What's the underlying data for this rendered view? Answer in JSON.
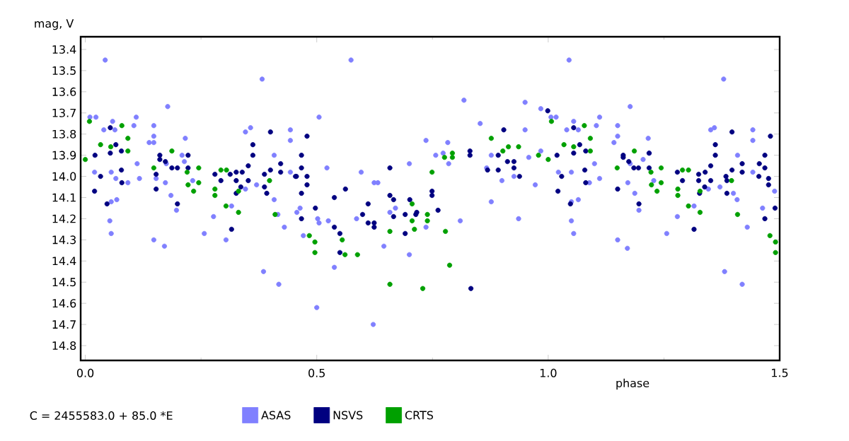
{
  "chart_data": {
    "type": "scatter",
    "ylabel": "mag, V",
    "xlabel": "phase",
    "annotations": [
      "C = 2455583.0 + 85.0 *E"
    ],
    "xlim": [
      -0.01,
      1.5
    ],
    "ylim": [
      14.87,
      13.34
    ],
    "xticks": [
      {
        "value": 0,
        "label": "0.0"
      },
      {
        "value": 0.5,
        "label": "0.5"
      },
      {
        "value": 1,
        "label": "1.0"
      },
      {
        "value": 1.5,
        "label": "1.5"
      }
    ],
    "yticks": [
      {
        "value": 13.4,
        "label": "13.4"
      },
      {
        "value": 13.5,
        "label": "13.5"
      },
      {
        "value": 13.6,
        "label": "13.6"
      },
      {
        "value": 13.7,
        "label": "13.7"
      },
      {
        "value": 13.8,
        "label": "13.8"
      },
      {
        "value": 13.9,
        "label": "13.9"
      },
      {
        "value": 14.0,
        "label": "14.0"
      },
      {
        "value": 14.1,
        "label": "14.1"
      },
      {
        "value": 14.2,
        "label": "14.2"
      },
      {
        "value": 14.3,
        "label": "14.3"
      },
      {
        "value": 14.4,
        "label": "14.4"
      },
      {
        "value": 14.5,
        "label": "14.5"
      },
      {
        "value": 14.6,
        "label": "14.6"
      },
      {
        "value": 14.7,
        "label": "14.7"
      },
      {
        "value": 14.8,
        "label": "14.8"
      }
    ],
    "legend": "bottom",
    "marker": "circle",
    "grid": false,
    "series": [
      {
        "name": "ASAS",
        "color": "#8080ff",
        "x": [
          0.043,
          0.01,
          0.023,
          0.04,
          0.059,
          0.064,
          0.11,
          0.105,
          0.138,
          0.148,
          0.112,
          0.117,
          0.02,
          0.056,
          0.066,
          0.092,
          0.056,
          0.068,
          0.053,
          0.056,
          0.148,
          0.148,
          0.178,
          0.153,
          0.175,
          0.173,
          0.185,
          0.197,
          0.209,
          0.216,
          0.214,
          0.232,
          0.257,
          0.148,
          0.171,
          0.277,
          0.304,
          0.316,
          0.346,
          0.357,
          0.346,
          0.37,
          0.382,
          0.385,
          0.418,
          0.408,
          0.408,
          0.416,
          0.43,
          0.443,
          0.443,
          0.443,
          0.457,
          0.574,
          0.505,
          0.464,
          0.471,
          0.502,
          0.505,
          0.522,
          0.525,
          0.538,
          0.5,
          0.586,
          0.596,
          0.624,
          0.632,
          0.658,
          0.67,
          0.645,
          0.7,
          0.7,
          0.622,
          0.736,
          0.736,
          0.757,
          0.783,
          0.773,
          0.785,
          0.818,
          0.81,
          0.867,
          0.877,
          0.853,
          0.877,
          0.9,
          0.926,
          0.936,
          0.95,
          0.95,
          0.984,
          1.006,
          1.017,
          0.972,
          1.022,
          0.958,
          0.984,
          1.045,
          1.055,
          1.04,
          1.065,
          1.111,
          1.104,
          1.142,
          1.177,
          1.05,
          1.089,
          1.111,
          1.1,
          1.05,
          1.065,
          1.05,
          1.055,
          1.15,
          1.15,
          1.172,
          1.177,
          1.187,
          1.196,
          1.205,
          1.216,
          1.218,
          1.228,
          1.256,
          1.15,
          1.171,
          1.279,
          1.315,
          1.351,
          1.359,
          1.346,
          1.371,
          1.379,
          1.381,
          1.419,
          1.4,
          1.409,
          1.408,
          1.43,
          1.442,
          1.442,
          1.442,
          1.463,
          1.489
        ],
        "values": [
          13.45,
          13.72,
          13.72,
          13.78,
          13.74,
          13.78,
          13.72,
          13.76,
          13.84,
          13.84,
          13.94,
          14.01,
          13.98,
          13.98,
          14.01,
          14.03,
          14.12,
          14.11,
          14.21,
          14.27,
          13.76,
          13.81,
          13.67,
          14.01,
          13.94,
          14.03,
          14.09,
          14.16,
          13.9,
          13.82,
          13.93,
          14.02,
          14.27,
          14.3,
          14.33,
          14.19,
          14.3,
          14.14,
          13.79,
          13.77,
          14.06,
          14.04,
          13.54,
          14.45,
          14.51,
          14.11,
          13.9,
          14.18,
          14.24,
          13.78,
          13.83,
          13.98,
          14.17,
          13.45,
          13.72,
          14.15,
          14.28,
          14.2,
          14.22,
          13.96,
          14.21,
          14.43,
          14.62,
          14.2,
          13.98,
          14.03,
          14.03,
          14.17,
          14.15,
          14.33,
          13.94,
          14.37,
          14.7,
          13.83,
          14.24,
          13.9,
          13.84,
          13.89,
          13.94,
          13.64,
          14.21,
          13.96,
          14.12,
          13.75,
          13.9,
          14.02,
          14.0,
          14.2,
          13.65,
          13.78,
          13.68,
          13.72,
          13.72,
          14.04,
          13.98,
          13.91,
          13.88,
          13.45,
          13.74,
          13.78,
          13.78,
          13.72,
          13.76,
          13.84,
          13.67,
          13.98,
          14.03,
          14.01,
          13.94,
          14.12,
          14.11,
          14.21,
          14.27,
          13.76,
          13.81,
          14.03,
          13.94,
          14.08,
          14.16,
          13.92,
          13.82,
          13.89,
          14.02,
          14.27,
          14.3,
          14.34,
          14.19,
          14.14,
          13.78,
          13.77,
          14.06,
          14.05,
          13.54,
          14.45,
          14.51,
          14.08,
          13.9,
          14.11,
          14.24,
          13.78,
          13.83,
          13.98,
          14.15,
          14.07
        ]
      },
      {
        "name": "NSVS",
        "color": "#000080",
        "x": [
          0.021,
          0.02,
          0.033,
          0.054,
          0.054,
          0.066,
          0.078,
          0.078,
          0.079,
          0.047,
          0.153,
          0.153,
          0.161,
          0.161,
          0.173,
          0.187,
          0.199,
          0.222,
          0.222,
          0.199,
          0.28,
          0.293,
          0.313,
          0.326,
          0.326,
          0.326,
          0.336,
          0.339,
          0.352,
          0.352,
          0.362,
          0.362,
          0.387,
          0.387,
          0.392,
          0.4,
          0.4,
          0.422,
          0.422,
          0.454,
          0.316,
          0.479,
          0.467,
          0.467,
          0.456,
          0.479,
          0.479,
          0.467,
          0.467,
          0.538,
          0.538,
          0.55,
          0.55,
          0.562,
          0.611,
          0.599,
          0.611,
          0.624,
          0.624,
          0.658,
          0.658,
          0.666,
          0.666,
          0.691,
          0.691,
          0.701,
          0.714,
          0.716,
          0.749,
          0.749,
          0.762,
          0.831,
          0.831,
          0.869,
          0.892,
          0.892,
          0.904,
          0.912,
          0.926,
          0.926,
          0.938,
          1.019,
          1.029,
          1.021,
          0.833,
          0.999,
          0.497,
          1.055,
          1.055,
          1.068,
          1.081,
          1.079,
          1.081,
          1.048,
          1.15,
          1.162,
          1.162,
          1.174,
          1.185,
          1.195,
          1.218,
          1.218,
          1.196,
          1.279,
          1.29,
          1.315,
          1.325,
          1.325,
          1.327,
          1.338,
          1.339,
          1.351,
          1.351,
          1.361,
          1.361,
          1.384,
          1.386,
          1.386,
          1.397,
          1.397,
          1.419,
          1.419,
          1.455,
          1.468,
          1.468,
          1.476,
          1.476,
          1.48,
          1.468,
          1.456,
          1.49
        ],
        "values": [
          13.9,
          14.07,
          14.0,
          13.77,
          13.89,
          13.85,
          13.88,
          13.97,
          14.03,
          14.13,
          13.99,
          14.06,
          13.9,
          13.92,
          13.93,
          13.96,
          13.96,
          13.9,
          13.96,
          14.13,
          13.99,
          14.02,
          13.99,
          13.98,
          14.02,
          14.08,
          14.05,
          13.98,
          13.95,
          14.02,
          13.9,
          13.85,
          13.99,
          14.05,
          14.08,
          13.79,
          13.97,
          13.94,
          13.98,
          14.0,
          14.25,
          13.81,
          13.9,
          13.96,
          14.0,
          14.0,
          14.04,
          14.08,
          14.2,
          14.1,
          14.24,
          14.27,
          14.36,
          14.06,
          14.13,
          14.18,
          14.22,
          14.22,
          14.24,
          13.96,
          14.09,
          14.11,
          14.19,
          14.18,
          14.27,
          14.11,
          14.18,
          14.17,
          14.07,
          14.09,
          14.16,
          13.88,
          13.9,
          13.97,
          13.97,
          13.9,
          13.78,
          13.93,
          13.93,
          13.96,
          14.0,
          13.9,
          14.0,
          14.07,
          14.53,
          13.69,
          14.15,
          13.77,
          13.89,
          13.85,
          13.88,
          13.97,
          14.03,
          14.13,
          14.06,
          13.9,
          13.91,
          13.93,
          13.96,
          13.96,
          13.89,
          13.96,
          14.13,
          13.98,
          14.02,
          14.25,
          13.99,
          14.02,
          14.08,
          14.05,
          13.98,
          13.95,
          14.02,
          13.9,
          13.85,
          14.0,
          14.02,
          14.08,
          13.97,
          13.79,
          13.94,
          13.98,
          14.0,
          13.9,
          13.96,
          14.01,
          14.04,
          13.81,
          14.2,
          13.94,
          14.15
        ]
      },
      {
        "name": "CRTS",
        "color": "#00a000",
        "x": [
          0.0,
          0.009,
          0.033,
          0.055,
          0.079,
          0.092,
          0.092,
          0.148,
          0.187,
          0.22,
          0.222,
          0.234,
          0.245,
          0.245,
          0.28,
          0.28,
          0.293,
          0.305,
          0.304,
          0.331,
          0.331,
          0.398,
          0.41,
          0.484,
          0.496,
          0.496,
          0.555,
          0.561,
          0.588,
          0.658,
          0.706,
          0.706,
          0.711,
          0.658,
          0.729,
          0.739,
          0.739,
          0.749,
          0.778,
          0.793,
          0.793,
          0.787,
          0.776,
          0.877,
          0.902,
          0.914,
          0.936,
          0.979,
          1.0,
          1.007,
          1.034,
          1.055,
          1.078,
          1.091,
          1.091,
          1.149,
          1.186,
          1.222,
          1.223,
          1.235,
          1.244,
          1.244,
          1.28,
          1.28,
          1.29,
          1.303,
          1.303,
          1.328,
          1.328,
          1.396,
          1.409,
          1.479,
          1.491,
          1.491
        ],
        "values": [
          13.92,
          13.74,
          13.85,
          13.86,
          13.76,
          13.82,
          13.88,
          13.96,
          13.88,
          13.98,
          14.04,
          14.07,
          13.96,
          14.03,
          14.09,
          14.06,
          13.97,
          13.97,
          14.14,
          14.07,
          14.17,
          14.02,
          14.18,
          14.28,
          14.31,
          14.36,
          14.3,
          14.37,
          14.37,
          14.51,
          14.13,
          14.21,
          14.25,
          14.26,
          14.53,
          14.18,
          14.21,
          13.98,
          14.26,
          13.89,
          13.91,
          14.42,
          13.91,
          13.82,
          13.88,
          13.86,
          13.86,
          13.9,
          13.92,
          13.74,
          13.85,
          13.86,
          13.76,
          13.82,
          13.88,
          13.96,
          13.88,
          13.98,
          14.04,
          14.07,
          13.96,
          14.03,
          14.09,
          14.06,
          13.97,
          13.97,
          14.14,
          14.07,
          14.17,
          14.02,
          14.18,
          14.28,
          14.31,
          14.36
        ]
      }
    ]
  }
}
